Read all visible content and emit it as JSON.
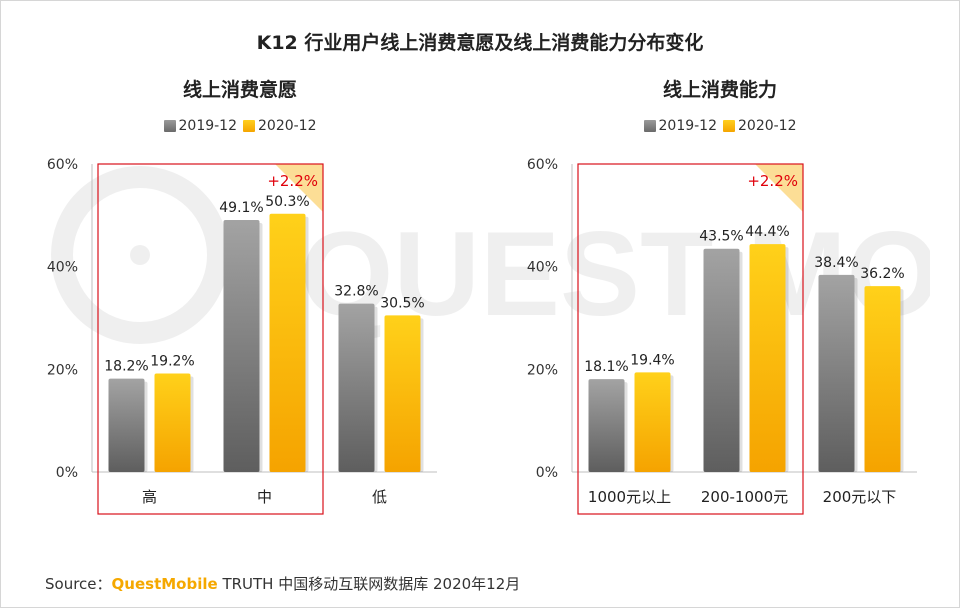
{
  "title": "K12 行业用户线上消费意愿及线上消费能力分布变化",
  "colors": {
    "series_2019": "#7f7f7f",
    "series_2020": "#fbb814",
    "highlight_box": "#d9121b",
    "change_text": "#e0000b",
    "brand": "#f5a800"
  },
  "chart_data": [
    {
      "type": "bar",
      "title": "线上消费意愿",
      "categories": [
        "高",
        "中",
        "低"
      ],
      "series": [
        {
          "name": "2019-12",
          "values": [
            18.2,
            49.1,
            32.8
          ],
          "labels": [
            "18.2%",
            "49.1%",
            "32.8%"
          ]
        },
        {
          "name": "2020-12",
          "values": [
            19.2,
            50.3,
            30.5
          ],
          "labels": [
            "19.2%",
            "50.3%",
            "30.5%"
          ]
        }
      ],
      "ylim": [
        0,
        60
      ],
      "yticks": [
        "0%",
        "20%",
        "40%",
        "60%"
      ],
      "legend": "top-center",
      "highlight": {
        "categories": [
          "高",
          "中"
        ],
        "label": "+2.2%"
      }
    },
    {
      "type": "bar",
      "title": "线上消费能力",
      "categories": [
        "1000元以上",
        "200-1000元",
        "200元以下"
      ],
      "series": [
        {
          "name": "2019-12",
          "values": [
            18.1,
            43.5,
            38.4
          ],
          "labels": [
            "18.1%",
            "43.5%",
            "38.4%"
          ]
        },
        {
          "name": "2020-12",
          "values": [
            19.4,
            44.4,
            36.2
          ],
          "labels": [
            "19.4%",
            "44.4%",
            "36.2%"
          ]
        }
      ],
      "ylim": [
        0,
        60
      ],
      "yticks": [
        "0%",
        "20%",
        "40%",
        "60%"
      ],
      "legend": "top-center",
      "highlight": {
        "categories": [
          "1000元以上",
          "200-1000元"
        ],
        "label": "+2.2%"
      }
    }
  ],
  "source": {
    "prefix": "Source：",
    "brand": "QuestMobile",
    "text": " TRUTH 中国移动互联网数据库 2020年12月"
  }
}
